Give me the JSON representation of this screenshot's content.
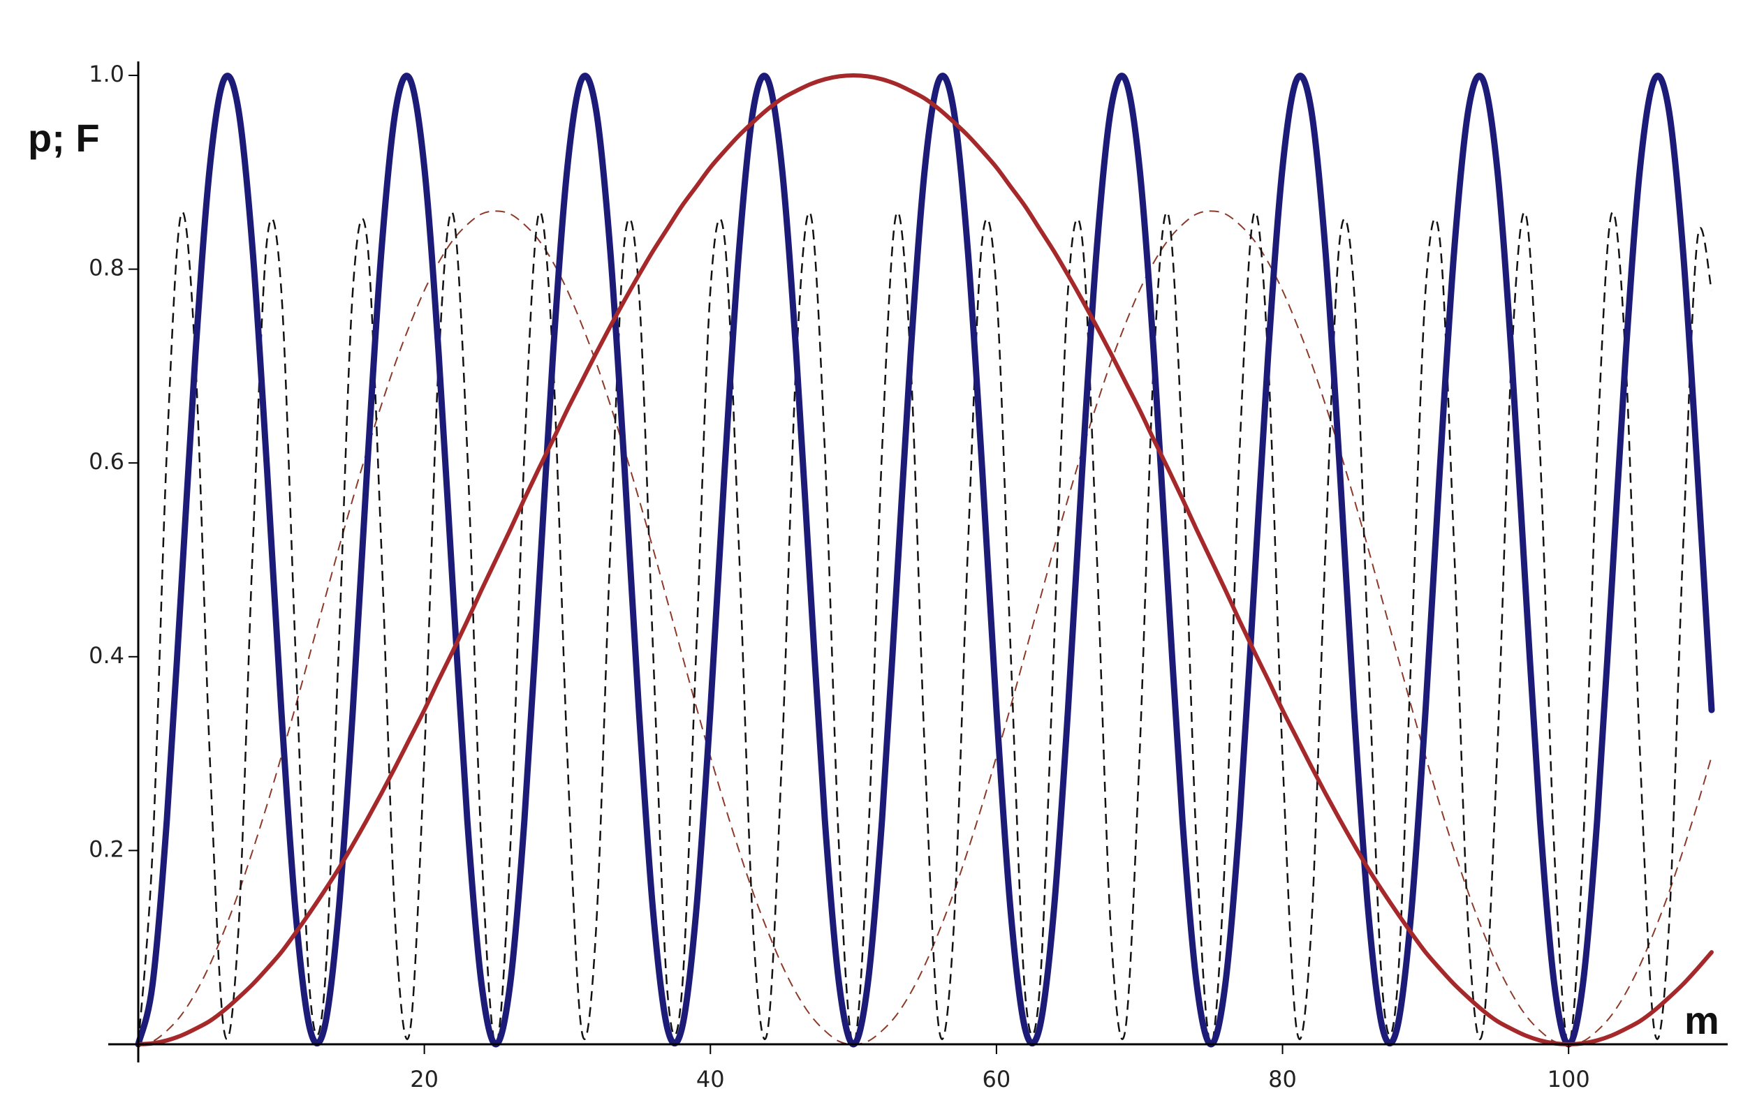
{
  "chart_data": {
    "type": "line",
    "y_label": "p; F",
    "x_label": "m",
    "x": [
      0,
      1,
      2,
      3,
      4,
      5,
      6,
      7,
      8,
      9,
      10,
      11,
      12,
      13,
      14,
      15,
      16,
      17,
      18,
      19,
      20,
      21,
      22,
      23,
      24,
      25,
      26,
      27,
      28,
      29,
      30,
      31,
      32,
      33,
      34,
      35,
      36,
      37,
      38,
      39,
      40,
      41,
      42,
      43,
      44,
      45,
      46,
      47,
      48,
      49,
      50,
      51,
      52,
      53,
      54,
      55,
      56,
      57,
      58,
      59,
      60,
      61,
      62,
      63,
      64,
      65,
      66,
      67,
      68,
      69,
      70,
      71,
      72,
      73,
      74,
      75,
      76,
      77,
      78,
      79,
      80,
      81,
      82,
      83,
      84,
      85,
      86,
      87,
      88,
      89,
      90,
      91,
      92,
      93,
      94,
      95,
      96,
      97,
      98,
      99,
      100,
      101,
      102,
      103,
      104,
      105,
      106,
      107,
      108,
      109,
      110
    ],
    "series": [
      {
        "color": "#8b3a2a",
        "dash": true,
        "width": 2,
        "values": [
          0,
          0.003,
          0.014,
          0.03,
          0.053,
          0.082,
          0.117,
          0.156,
          0.2,
          0.247,
          0.297,
          0.349,
          0.403,
          0.457,
          0.511,
          0.563,
          0.613,
          0.66,
          0.704,
          0.743,
          0.778,
          0.807,
          0.83,
          0.846,
          0.857,
          0.86,
          0.857,
          0.846,
          0.83,
          0.807,
          0.778,
          0.743,
          0.704,
          0.66,
          0.613,
          0.563,
          0.511,
          0.457,
          0.403,
          0.349,
          0.297,
          0.247,
          0.2,
          0.156,
          0.117,
          0.082,
          0.053,
          0.03,
          0.014,
          0.003,
          0,
          0.003,
          0.014,
          0.03,
          0.053,
          0.082,
          0.117,
          0.156,
          0.2,
          0.247,
          0.297,
          0.349,
          0.403,
          0.457,
          0.511,
          0.563,
          0.613,
          0.66,
          0.704,
          0.743,
          0.778,
          0.807,
          0.83,
          0.846,
          0.857,
          0.86,
          0.857,
          0.846,
          0.83,
          0.807,
          0.778,
          0.743,
          0.704,
          0.66,
          0.613,
          0.563,
          0.511,
          0.457,
          0.403,
          0.349,
          0.297,
          0.247,
          0.2,
          0.156,
          0.117,
          0.082,
          0.053,
          0.03,
          0.014,
          0.003,
          0,
          0.003,
          0.014,
          0.03,
          0.053,
          0.082,
          0.117,
          0.156,
          0.2,
          0.247,
          0.297
        ]
      },
      {
        "color": "#111111",
        "dash": true,
        "width": 2.5,
        "values": [
          0,
          0.2,
          0.613,
          0.857,
          0.704,
          0.297,
          0.014,
          0.117,
          0.511,
          0.83,
          0.778,
          0.403,
          0.053,
          0.053,
          0.403,
          0.778,
          0.83,
          0.511,
          0.117,
          0.014,
          0.297,
          0.704,
          0.857,
          0.613,
          0.2,
          0,
          0.2,
          0.613,
          0.857,
          0.704,
          0.297,
          0.014,
          0.117,
          0.511,
          0.83,
          0.778,
          0.403,
          0.053,
          0.053,
          0.403,
          0.778,
          0.83,
          0.511,
          0.117,
          0.014,
          0.297,
          0.704,
          0.857,
          0.613,
          0.2,
          0,
          0.2,
          0.613,
          0.857,
          0.704,
          0.297,
          0.014,
          0.117,
          0.511,
          0.83,
          0.778,
          0.403,
          0.053,
          0.053,
          0.403,
          0.778,
          0.83,
          0.511,
          0.117,
          0.014,
          0.297,
          0.704,
          0.857,
          0.613,
          0.2,
          0,
          0.2,
          0.613,
          0.857,
          0.704,
          0.297,
          0.014,
          0.117,
          0.511,
          0.83,
          0.778,
          0.403,
          0.053,
          0.053,
          0.403,
          0.778,
          0.83,
          0.511,
          0.117,
          0.014,
          0.297,
          0.704,
          0.857,
          0.613,
          0.2,
          0,
          0.2,
          0.613,
          0.857,
          0.704,
          0.297,
          0.014,
          0.117,
          0.511,
          0.83,
          0.778
        ]
      },
      {
        "color": "#1c1c78",
        "dash": false,
        "width": 9,
        "values": [
          0,
          0.062,
          0.232,
          0.469,
          0.713,
          0.905,
          0.996,
          0.965,
          0.819,
          0.594,
          0.345,
          0.136,
          0.016,
          0.016,
          0.136,
          0.345,
          0.594,
          0.819,
          0.965,
          0.996,
          0.905,
          0.713,
          0.469,
          0.232,
          0.062,
          0,
          0.062,
          0.232,
          0.469,
          0.713,
          0.905,
          0.996,
          0.965,
          0.819,
          0.594,
          0.345,
          0.136,
          0.016,
          0.016,
          0.136,
          0.345,
          0.594,
          0.819,
          0.965,
          0.996,
          0.905,
          0.713,
          0.469,
          0.232,
          0.062,
          0,
          0.062,
          0.232,
          0.469,
          0.713,
          0.905,
          0.996,
          0.965,
          0.819,
          0.594,
          0.345,
          0.136,
          0.016,
          0.016,
          0.136,
          0.345,
          0.594,
          0.819,
          0.965,
          0.996,
          0.905,
          0.713,
          0.469,
          0.232,
          0.062,
          0,
          0.062,
          0.232,
          0.469,
          0.713,
          0.905,
          0.996,
          0.965,
          0.819,
          0.594,
          0.345,
          0.136,
          0.016,
          0.016,
          0.136,
          0.345,
          0.594,
          0.819,
          0.965,
          0.996,
          0.905,
          0.713,
          0.469,
          0.232,
          0.062,
          0,
          0.062,
          0.232,
          0.469,
          0.713,
          0.905,
          0.996,
          0.965,
          0.819,
          0.594,
          0.345
        ]
      },
      {
        "color": "#a5282a",
        "dash": false,
        "width": 6,
        "values": [
          0,
          0.001,
          0.004,
          0.009,
          0.016,
          0.024,
          0.035,
          0.048,
          0.062,
          0.078,
          0.095,
          0.115,
          0.136,
          0.158,
          0.181,
          0.206,
          0.232,
          0.259,
          0.287,
          0.316,
          0.345,
          0.376,
          0.406,
          0.437,
          0.469,
          0.5,
          0.531,
          0.563,
          0.594,
          0.624,
          0.655,
          0.684,
          0.713,
          0.741,
          0.768,
          0.794,
          0.819,
          0.842,
          0.865,
          0.885,
          0.905,
          0.922,
          0.938,
          0.952,
          0.965,
          0.976,
          0.984,
          0.991,
          0.996,
          0.999,
          1,
          0.999,
          0.996,
          0.991,
          0.984,
          0.976,
          0.965,
          0.952,
          0.938,
          0.922,
          0.905,
          0.885,
          0.865,
          0.842,
          0.819,
          0.794,
          0.768,
          0.741,
          0.713,
          0.684,
          0.655,
          0.624,
          0.594,
          0.563,
          0.531,
          0.5,
          0.469,
          0.437,
          0.406,
          0.376,
          0.345,
          0.316,
          0.287,
          0.259,
          0.232,
          0.206,
          0.181,
          0.158,
          0.136,
          0.115,
          0.095,
          0.078,
          0.062,
          0.048,
          0.035,
          0.024,
          0.016,
          0.009,
          0.004,
          0.001,
          0,
          0.001,
          0.004,
          0.009,
          0.016,
          0.024,
          0.035,
          0.048,
          0.062,
          0.078,
          0.095
        ]
      }
    ],
    "xlim": [
      0,
      110
    ],
    "ylim": [
      0,
      1
    ],
    "xticks": [
      20,
      40,
      60,
      80,
      100
    ],
    "yticks": [
      0.2,
      0.4,
      0.6,
      0.8,
      {
        "value": 1,
        "label": "1.0"
      }
    ],
    "grid": false
  }
}
